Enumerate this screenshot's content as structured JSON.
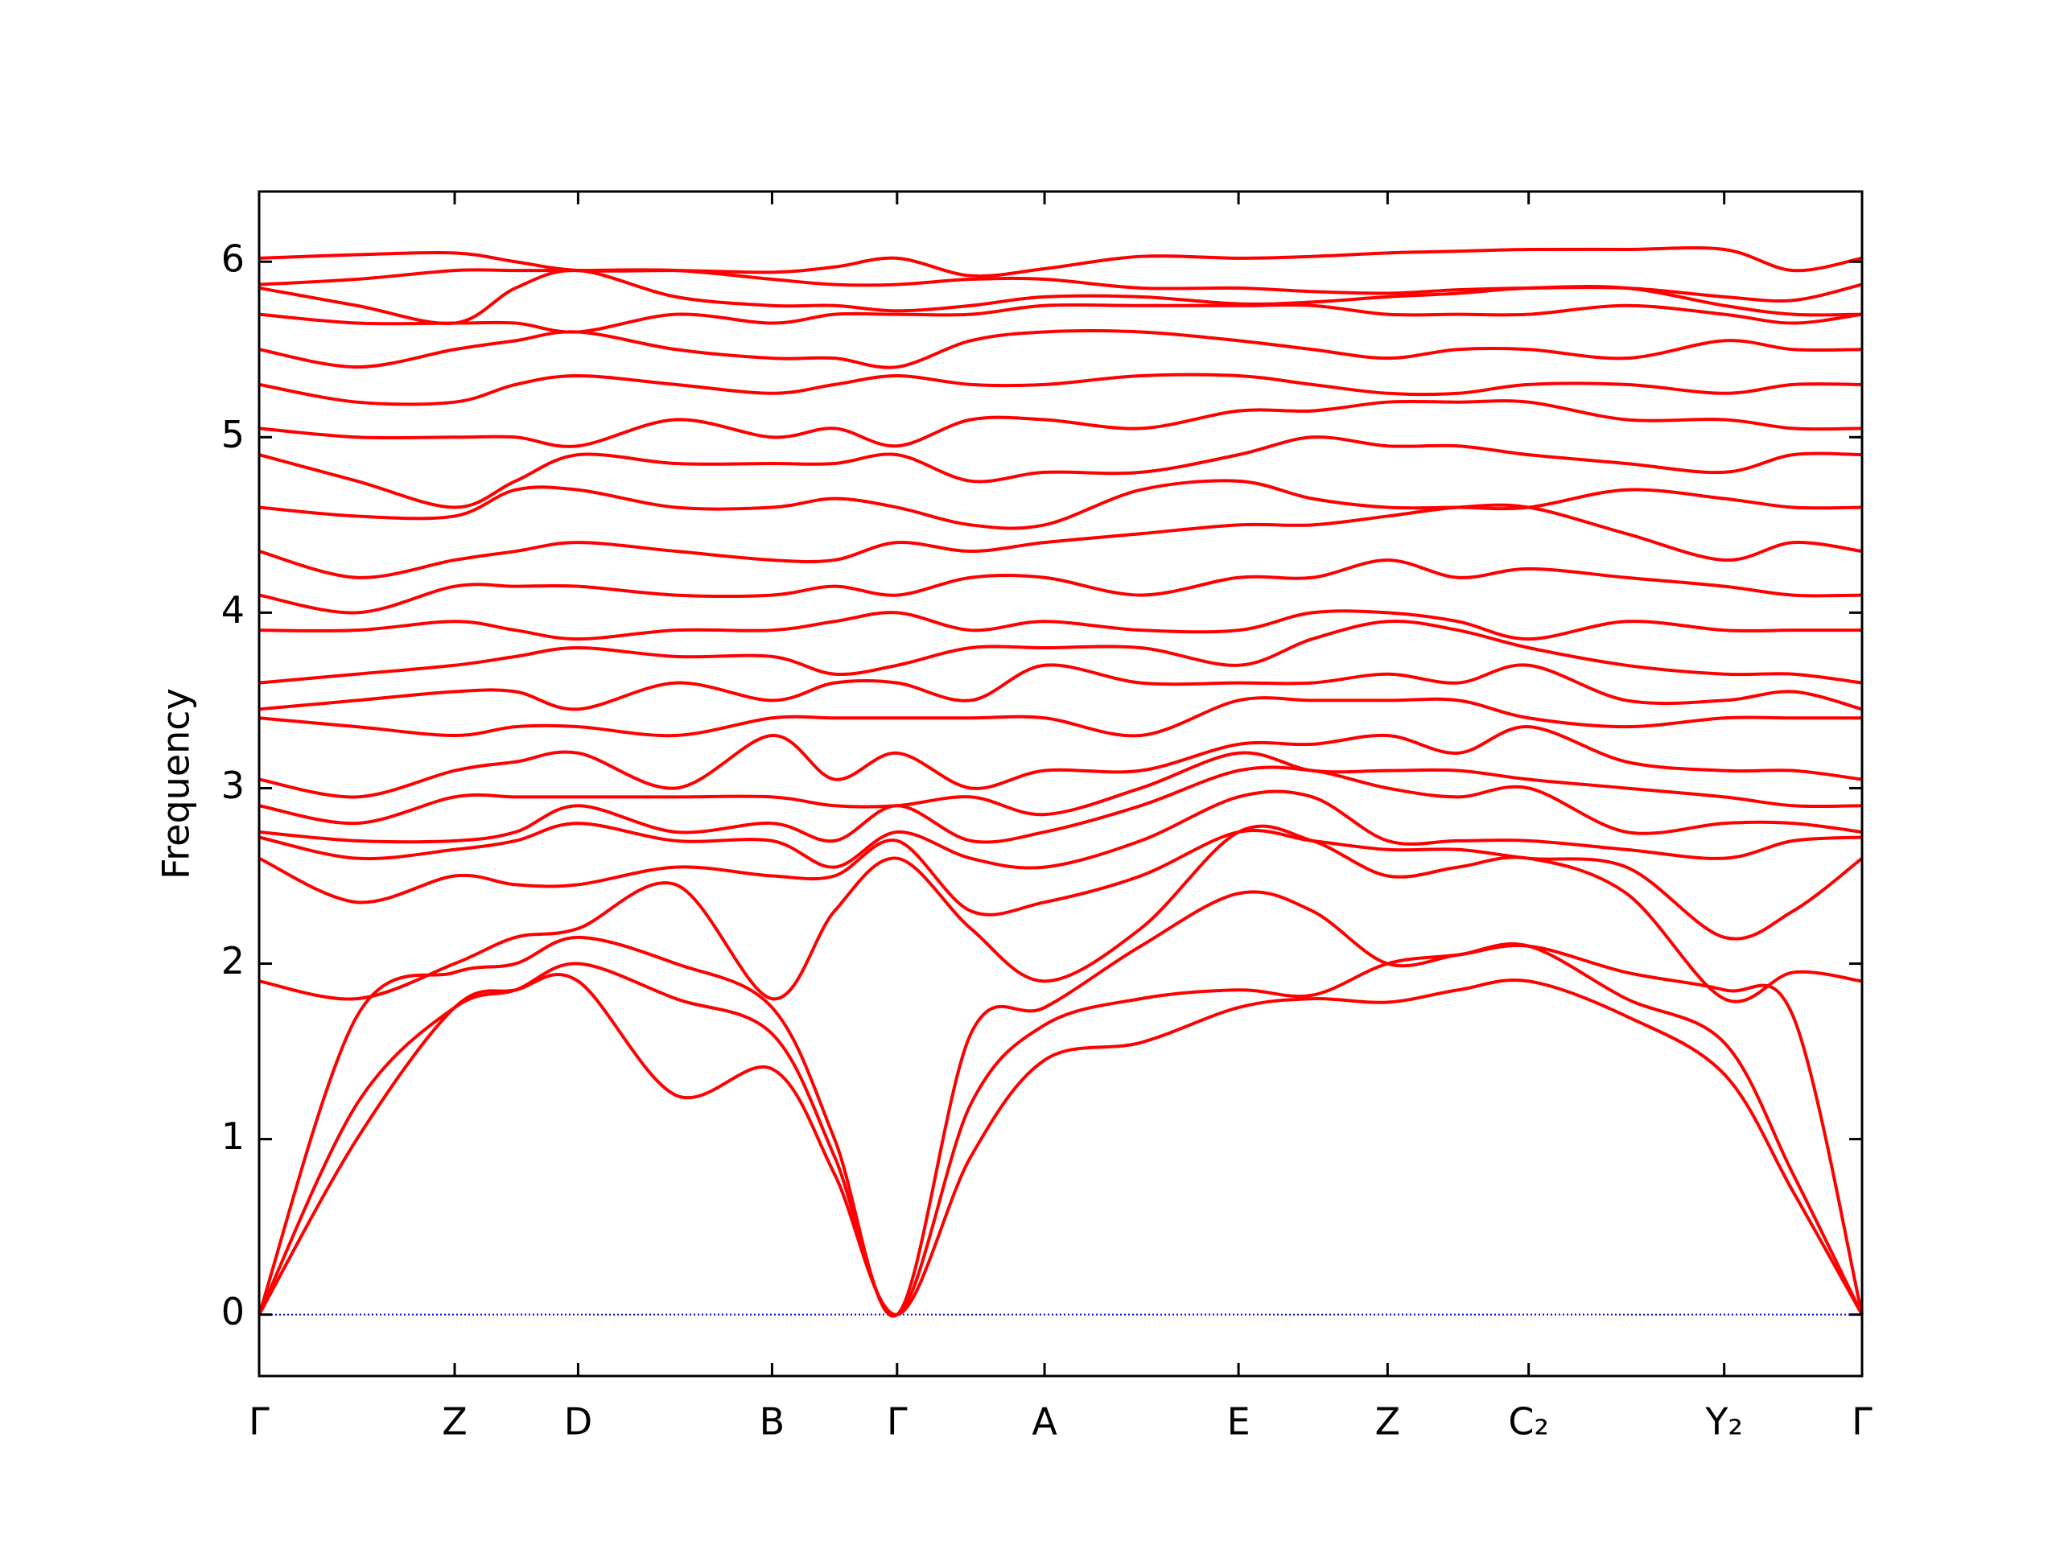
{
  "chart_data": {
    "type": "line",
    "ylabel": "Frequency",
    "color": "#ff0000",
    "hline": 0,
    "hline_color": "#0000ff",
    "xlim": [
      0,
      1
    ],
    "ylim": [
      -0.35,
      6.4
    ],
    "yticks": [
      0,
      1,
      2,
      3,
      4,
      5,
      6
    ],
    "xticks": [
      {
        "value": 0,
        "label": "Γ"
      },
      {
        "value": 0.122,
        "label": "Z"
      },
      {
        "value": 0.199,
        "label": "D"
      },
      {
        "value": 0.32,
        "label": "B"
      },
      {
        "value": 0.398,
        "label": "Γ"
      },
      {
        "value": 0.49,
        "label": "A"
      },
      {
        "value": 0.611,
        "label": "E"
      },
      {
        "value": 0.704,
        "label": "Z"
      },
      {
        "value": 0.792,
        "label": "C₂"
      },
      {
        "value": 0.914,
        "label": "Y₂"
      },
      {
        "value": 1,
        "label": "Γ"
      }
    ],
    "x": [
      0,
      0.061,
      0.122,
      0.16,
      0.199,
      0.26,
      0.32,
      0.359,
      0.398,
      0.444,
      0.49,
      0.55,
      0.611,
      0.657,
      0.704,
      0.748,
      0.792,
      0.853,
      0.914,
      0.957,
      1
    ],
    "series": [
      {
        "values": [
          0,
          1.0,
          1.75,
          1.85,
          1.9,
          1.25,
          1.4,
          0.8,
          0,
          0.9,
          1.45,
          1.55,
          1.75,
          1.8,
          1.78,
          1.85,
          1.9,
          1.7,
          1.37,
          0.7,
          0
        ]
      },
      {
        "values": [
          0,
          1.2,
          1.75,
          1.85,
          2.0,
          1.8,
          1.6,
          0.9,
          0,
          1.2,
          1.65,
          1.8,
          1.85,
          1.82,
          2.0,
          2.05,
          2.1,
          1.8,
          1.55,
          0.8,
          0
        ]
      },
      {
        "values": [
          0,
          1.7,
          1.95,
          2.0,
          2.15,
          2.0,
          1.75,
          1.0,
          0,
          1.6,
          1.75,
          2.1,
          2.4,
          2.3,
          2.0,
          2.05,
          2.1,
          1.95,
          1.85,
          1.7,
          0
        ]
      },
      {
        "values": [
          1.9,
          1.8,
          2.0,
          2.15,
          2.2,
          2.45,
          1.8,
          2.3,
          2.6,
          2.2,
          1.9,
          2.2,
          2.75,
          2.7,
          2.5,
          2.55,
          2.6,
          2.4,
          1.8,
          1.95,
          1.9
        ]
      },
      {
        "values": [
          2.6,
          2.35,
          2.5,
          2.45,
          2.45,
          2.55,
          2.5,
          2.5,
          2.7,
          2.3,
          2.35,
          2.5,
          2.75,
          2.7,
          2.65,
          2.65,
          2.6,
          2.55,
          2.15,
          2.3,
          2.6
        ]
      },
      {
        "values": [
          2.72,
          2.6,
          2.65,
          2.7,
          2.8,
          2.7,
          2.7,
          2.55,
          2.75,
          2.6,
          2.55,
          2.7,
          2.95,
          2.95,
          2.7,
          2.7,
          2.7,
          2.65,
          2.6,
          2.7,
          2.72
        ]
      },
      {
        "values": [
          2.75,
          2.7,
          2.7,
          2.75,
          2.9,
          2.75,
          2.8,
          2.7,
          2.9,
          2.7,
          2.75,
          2.9,
          3.1,
          3.1,
          3.0,
          2.95,
          3.0,
          2.75,
          2.8,
          2.8,
          2.75
        ]
      },
      {
        "values": [
          2.9,
          2.8,
          2.95,
          2.95,
          2.95,
          2.95,
          2.95,
          2.9,
          2.9,
          2.95,
          2.85,
          3.0,
          3.2,
          3.1,
          3.1,
          3.1,
          3.05,
          3.0,
          2.95,
          2.9,
          2.9
        ]
      },
      {
        "values": [
          3.05,
          2.95,
          3.1,
          3.15,
          3.2,
          3.0,
          3.3,
          3.05,
          3.2,
          3.0,
          3.1,
          3.1,
          3.25,
          3.25,
          3.3,
          3.2,
          3.35,
          3.15,
          3.1,
          3.1,
          3.05
        ]
      },
      {
        "values": [
          3.4,
          3.35,
          3.3,
          3.35,
          3.35,
          3.3,
          3.4,
          3.4,
          3.4,
          3.4,
          3.4,
          3.3,
          3.5,
          3.5,
          3.5,
          3.5,
          3.4,
          3.35,
          3.4,
          3.4,
          3.4
        ]
      },
      {
        "values": [
          3.45,
          3.5,
          3.55,
          3.55,
          3.45,
          3.6,
          3.5,
          3.6,
          3.6,
          3.5,
          3.7,
          3.6,
          3.6,
          3.6,
          3.65,
          3.6,
          3.7,
          3.5,
          3.5,
          3.55,
          3.45
        ]
      },
      {
        "values": [
          3.6,
          3.65,
          3.7,
          3.75,
          3.8,
          3.75,
          3.75,
          3.65,
          3.7,
          3.8,
          3.8,
          3.8,
          3.7,
          3.85,
          3.95,
          3.9,
          3.8,
          3.7,
          3.65,
          3.65,
          3.6
        ]
      },
      {
        "values": [
          3.9,
          3.9,
          3.95,
          3.9,
          3.85,
          3.9,
          3.9,
          3.95,
          4.0,
          3.9,
          3.95,
          3.9,
          3.9,
          4.0,
          4.0,
          3.95,
          3.85,
          3.95,
          3.9,
          3.9,
          3.9
        ]
      },
      {
        "values": [
          4.1,
          4.0,
          4.15,
          4.15,
          4.15,
          4.1,
          4.1,
          4.15,
          4.1,
          4.2,
          4.2,
          4.1,
          4.2,
          4.2,
          4.3,
          4.2,
          4.25,
          4.2,
          4.15,
          4.1,
          4.1
        ]
      },
      {
        "values": [
          4.35,
          4.2,
          4.3,
          4.35,
          4.4,
          4.35,
          4.3,
          4.3,
          4.4,
          4.35,
          4.4,
          4.45,
          4.5,
          4.5,
          4.55,
          4.6,
          4.6,
          4.45,
          4.3,
          4.4,
          4.35
        ]
      },
      {
        "values": [
          4.6,
          4.55,
          4.55,
          4.7,
          4.7,
          4.6,
          4.6,
          4.65,
          4.6,
          4.5,
          4.5,
          4.7,
          4.75,
          4.65,
          4.6,
          4.6,
          4.6,
          4.7,
          4.65,
          4.6,
          4.6
        ]
      },
      {
        "values": [
          4.9,
          4.75,
          4.6,
          4.75,
          4.9,
          4.85,
          4.85,
          4.85,
          4.9,
          4.75,
          4.8,
          4.8,
          4.9,
          5.0,
          4.95,
          4.95,
          4.9,
          4.85,
          4.8,
          4.9,
          4.9
        ]
      },
      {
        "values": [
          5.05,
          5.0,
          5.0,
          5.0,
          4.95,
          5.1,
          5.0,
          5.05,
          4.95,
          5.1,
          5.1,
          5.05,
          5.15,
          5.15,
          5.2,
          5.2,
          5.2,
          5.1,
          5.1,
          5.05,
          5.05
        ]
      },
      {
        "values": [
          5.3,
          5.2,
          5.2,
          5.3,
          5.35,
          5.3,
          5.25,
          5.3,
          5.35,
          5.3,
          5.3,
          5.35,
          5.35,
          5.3,
          5.25,
          5.25,
          5.3,
          5.3,
          5.25,
          5.3,
          5.3
        ]
      },
      {
        "values": [
          5.5,
          5.4,
          5.5,
          5.55,
          5.6,
          5.5,
          5.45,
          5.45,
          5.4,
          5.55,
          5.6,
          5.6,
          5.55,
          5.5,
          5.45,
          5.5,
          5.5,
          5.45,
          5.55,
          5.5,
          5.5
        ]
      },
      {
        "values": [
          5.7,
          5.65,
          5.65,
          5.65,
          5.6,
          5.7,
          5.65,
          5.7,
          5.7,
          5.7,
          5.75,
          5.75,
          5.75,
          5.75,
          5.7,
          5.7,
          5.7,
          5.75,
          5.7,
          5.65,
          5.7
        ]
      },
      {
        "values": [
          5.85,
          5.75,
          5.65,
          5.85,
          5.95,
          5.8,
          5.75,
          5.75,
          5.72,
          5.75,
          5.8,
          5.8,
          5.76,
          5.77,
          5.8,
          5.82,
          5.85,
          5.85,
          5.75,
          5.7,
          5.7
        ]
      },
      {
        "values": [
          5.87,
          5.9,
          5.95,
          5.95,
          5.95,
          5.95,
          5.9,
          5.87,
          5.87,
          5.9,
          5.9,
          5.85,
          5.85,
          5.83,
          5.82,
          5.84,
          5.85,
          5.85,
          5.8,
          5.78,
          5.87
        ]
      },
      {
        "values": [
          6.02,
          6.04,
          6.05,
          6.0,
          5.95,
          5.95,
          5.94,
          5.97,
          6.02,
          5.92,
          5.96,
          6.03,
          6.02,
          6.03,
          6.05,
          6.06,
          6.07,
          6.07,
          6.07,
          5.95,
          6.02
        ]
      }
    ]
  }
}
